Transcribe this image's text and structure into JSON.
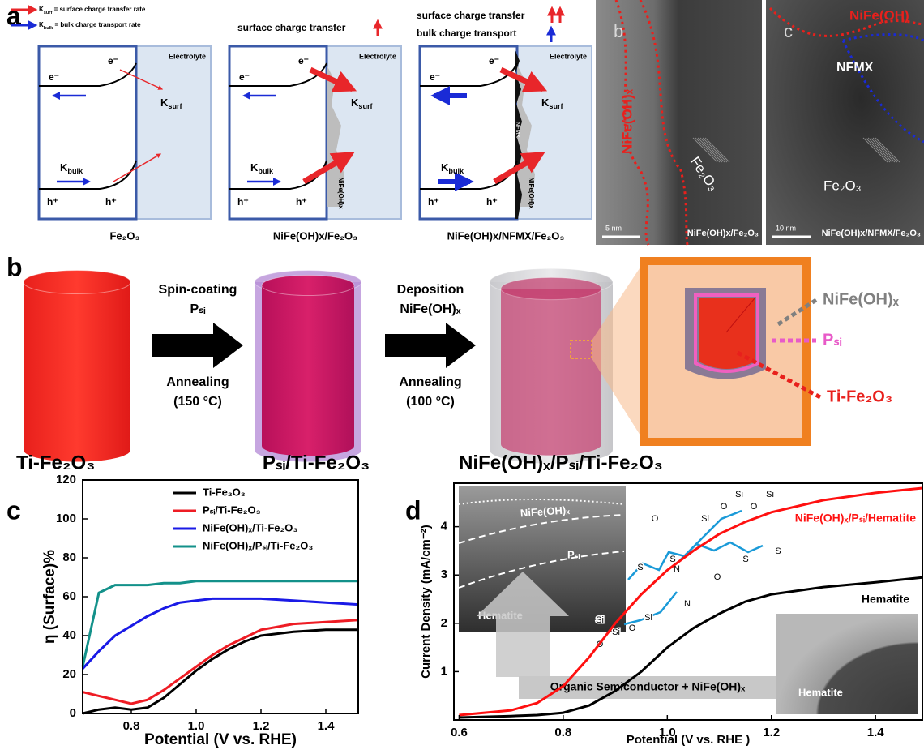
{
  "panel_labels": [
    "a",
    "b",
    "c",
    "d"
  ],
  "schematic": {
    "legend": [
      {
        "k": "K",
        "sub": "surf",
        "text": " = surface charge transfer rate",
        "color": "#e8262a"
      },
      {
        "k": "K",
        "sub": "bulk",
        "text": " = bulk charge transport rate",
        "color": "#1a2bd6"
      }
    ],
    "stray_label": "a",
    "boxes": [
      {
        "electrolyte": "Electrolyte",
        "e_bulk": "e⁻",
        "e_surf": "e⁻",
        "h_bulk": "h⁺",
        "h_surf": "h⁺",
        "k_surf": "K",
        "k_surf_sub": "surf",
        "k_bulk": "K",
        "k_bulk_sub": "bulk",
        "caption": "Fe₂O₃"
      },
      {
        "electrolyte": "Electrolyte",
        "e_bulk": "e⁻",
        "e_surf": "e⁻",
        "h_bulk": "h⁺",
        "h_surf": "h⁺",
        "k_surf": "K",
        "k_surf_sub": "surf",
        "k_bulk": "K",
        "k_bulk_sub": "bulk",
        "caption": "NiFe(OH)x/Fe₂O₃",
        "layer": "NiFe(OH)x",
        "header": [
          "surface charge transfer"
        ]
      },
      {
        "electrolyte": "Electrolyte",
        "e_bulk": "e⁻",
        "e_surf": "e⁻",
        "h_bulk": "h⁺",
        "h_surf": "h⁺",
        "k_surf": "K",
        "k_surf_sub": "surf",
        "k_bulk": "K",
        "k_bulk_sub": "bulk",
        "caption": "NiFe(OH)x/NFMX/Fe₂O₃",
        "layer": "NiFe(OH)x",
        "interlayer": "NFMX",
        "header": [
          "surface charge transfer",
          "bulk charge transport"
        ]
      }
    ]
  },
  "tem": [
    {
      "label": "b",
      "shell": "NiFe(OH)ₓ",
      "core": "Fe₂O₃",
      "scale": "5 nm",
      "caption": "NiFe(OH)x/Fe₂O₃"
    },
    {
      "label": "c",
      "shell": "NiFe(OH)",
      "interlayer": "NFMX",
      "core": "Fe₂O₃",
      "scale": "10 nm",
      "caption": "NiFe(OH)x/NFMX/Fe₂O₃"
    }
  ],
  "process": {
    "step1": [
      "Spin-coating",
      "Pₛᵢ",
      "Annealing",
      "(150 °C)"
    ],
    "step2": [
      "Deposition",
      "NiFe(OH)ₓ",
      "Annealing",
      "(100 °C)"
    ],
    "stages": [
      "Ti-Fe₂O₃",
      "Pₛᵢ/Ti-Fe₂O₃",
      "NiFe(OH)ₓ/Pₛᵢ/Ti-Fe₂O₃"
    ],
    "zoom_labels": [
      {
        "text": "NiFe(OH)ₓ",
        "color": "#808080"
      },
      {
        "text": "Pₛᵢ",
        "color": "#e85ac8"
      },
      {
        "text": "Ti-Fe₂O₃",
        "color": "#e8201c"
      }
    ]
  },
  "chart_data": [
    {
      "type": "line",
      "xlabel": "Potential (V vs. RHE)",
      "ylabel": "η (Surface)%",
      "x": [
        0.65,
        0.7,
        0.75,
        0.8,
        0.85,
        0.9,
        0.95,
        1.0,
        1.05,
        1.1,
        1.15,
        1.2,
        1.3,
        1.4,
        1.5
      ],
      "series": [
        {
          "name": "Ti-Fe₂O₃",
          "color": "#000000",
          "values": [
            0,
            2,
            3,
            2,
            3,
            8,
            15,
            22,
            28,
            33,
            37,
            40,
            42,
            43,
            43
          ]
        },
        {
          "name": "Pₛᵢ/Ti-Fe₂O₃",
          "color": "#ee1c24",
          "values": [
            11,
            9,
            7,
            5,
            7,
            12,
            18,
            24,
            30,
            35,
            39,
            43,
            46,
            47,
            48
          ]
        },
        {
          "name": "NiFe(OH)ₓ/Ti-Fe₂O₃",
          "color": "#1a1ae6",
          "values": [
            23,
            32,
            40,
            45,
            50,
            54,
            57,
            58,
            59,
            59,
            59,
            59,
            58,
            57,
            56
          ]
        },
        {
          "name": "NiFe(OH)ₓ/Pₛᵢ/Ti-Fe₂O₃",
          "color": "#13918a",
          "values": [
            24,
            62,
            66,
            66,
            66,
            67,
            67,
            68,
            68,
            68,
            68,
            68,
            68,
            68,
            68
          ]
        }
      ],
      "xlim": [
        0.65,
        1.5
      ],
      "ylim": [
        0,
        120
      ],
      "xticks": [
        0.8,
        {
          "value": 1.0,
          "label": "1.0"
        },
        1.2,
        1.4
      ],
      "yticks": [
        0,
        20,
        40,
        60,
        80,
        100,
        120
      ],
      "legend": "upper right"
    },
    {
      "type": "line",
      "xlabel": "Potential (V vs. RHE )",
      "ylabel": "Current Density (mA/cm⁻²)",
      "x": [
        0.6,
        0.7,
        0.75,
        0.8,
        0.85,
        0.9,
        0.95,
        1.0,
        1.05,
        1.1,
        1.15,
        1.2,
        1.3,
        1.4,
        1.49
      ],
      "series": [
        {
          "name": "NiFe(OH)ₓ/Pₛᵢ/Hematite",
          "color": "#ff1010",
          "values": [
            0.1,
            0.2,
            0.35,
            0.7,
            1.3,
            2.0,
            2.6,
            3.1,
            3.5,
            3.85,
            4.1,
            4.3,
            4.55,
            4.7,
            4.8
          ]
        },
        {
          "name": "Hematite",
          "color": "#000000",
          "values": [
            0.05,
            0.08,
            0.1,
            0.15,
            0.3,
            0.6,
            1.0,
            1.5,
            1.9,
            2.2,
            2.45,
            2.6,
            2.75,
            2.85,
            2.95
          ]
        }
      ],
      "xlim": [
        0.59,
        1.49
      ],
      "ylim": [
        0,
        4.9
      ],
      "xticks": [
        0.6,
        0.8,
        {
          "value": 1.0,
          "label": "1.0"
        },
        1.2,
        1.4
      ],
      "yticks": [
        1,
        2,
        3,
        4
      ],
      "inset_labels": [
        "NiFe(OH)ₓ",
        "Pₛᵢ",
        "Hematite"
      ],
      "surface_label": "Hematite",
      "arrow_label": "Organic Semiconductor + NiFe(OH)ₓ",
      "molecule_atoms": [
        "Si",
        "O",
        "Si",
        "O",
        "Si",
        "O",
        "N",
        "N",
        "O",
        "Si",
        "O",
        "Si",
        "O",
        "Si",
        "S",
        "S",
        "S",
        "S"
      ]
    }
  ]
}
